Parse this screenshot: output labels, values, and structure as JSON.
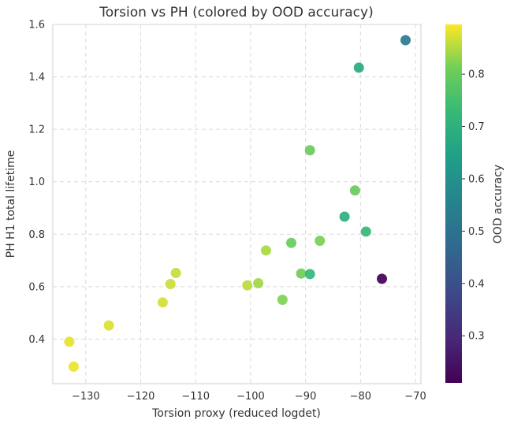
{
  "chart_data": {
    "type": "scatter",
    "title": "Torsion vs PH (colored by OOD accuracy)",
    "xlabel": "Torsion proxy (reduced logdet)",
    "ylabel": "PH H1 total lifetime",
    "xlim": [
      -136,
      -69
    ],
    "ylim": [
      0.23,
      1.6
    ],
    "xticks": [
      -130,
      -120,
      -110,
      -100,
      -90,
      -80,
      -70
    ],
    "yticks": [
      0.4,
      0.6,
      0.8,
      1.0,
      1.2,
      1.4,
      1.6
    ],
    "xtick_labels": [
      "−130",
      "−120",
      "−110",
      "−100",
      "−90",
      "−80",
      "−70"
    ],
    "ytick_labels": [
      "0.4",
      "0.6",
      "0.8",
      "1.0",
      "1.2",
      "1.4",
      "1.6"
    ],
    "grid": true,
    "colorbar": {
      "label": "OOD accuracy",
      "colormap": "viridis",
      "range": [
        0.21,
        0.895
      ],
      "ticks": [
        0.3,
        0.4,
        0.5,
        0.6,
        0.7,
        0.8
      ],
      "tick_labels": [
        "0.3",
        "0.4",
        "0.5",
        "0.6",
        "0.7",
        "0.8"
      ]
    },
    "points": [
      {
        "x": -133.0,
        "y": 0.39,
        "c": 0.88
      },
      {
        "x": -132.2,
        "y": 0.295,
        "c": 0.885
      },
      {
        "x": -125.8,
        "y": 0.452,
        "c": 0.875
      },
      {
        "x": -116.0,
        "y": 0.54,
        "c": 0.87
      },
      {
        "x": -114.6,
        "y": 0.61,
        "c": 0.865
      },
      {
        "x": -113.6,
        "y": 0.652,
        "c": 0.86
      },
      {
        "x": -100.6,
        "y": 0.605,
        "c": 0.855
      },
      {
        "x": -98.6,
        "y": 0.613,
        "c": 0.84
      },
      {
        "x": -97.2,
        "y": 0.738,
        "c": 0.845
      },
      {
        "x": -94.2,
        "y": 0.55,
        "c": 0.82
      },
      {
        "x": -92.6,
        "y": 0.767,
        "c": 0.8
      },
      {
        "x": -90.8,
        "y": 0.65,
        "c": 0.81
      },
      {
        "x": -89.2,
        "y": 0.648,
        "c": 0.72
      },
      {
        "x": -89.2,
        "y": 1.12,
        "c": 0.8
      },
      {
        "x": -87.4,
        "y": 0.775,
        "c": 0.815
      },
      {
        "x": -82.9,
        "y": 0.867,
        "c": 0.7
      },
      {
        "x": -81.0,
        "y": 0.967,
        "c": 0.8
      },
      {
        "x": -80.3,
        "y": 1.435,
        "c": 0.68
      },
      {
        "x": -79.0,
        "y": 0.81,
        "c": 0.72
      },
      {
        "x": -76.1,
        "y": 0.63,
        "c": 0.21
      },
      {
        "x": -71.8,
        "y": 1.54,
        "c": 0.52
      }
    ]
  }
}
